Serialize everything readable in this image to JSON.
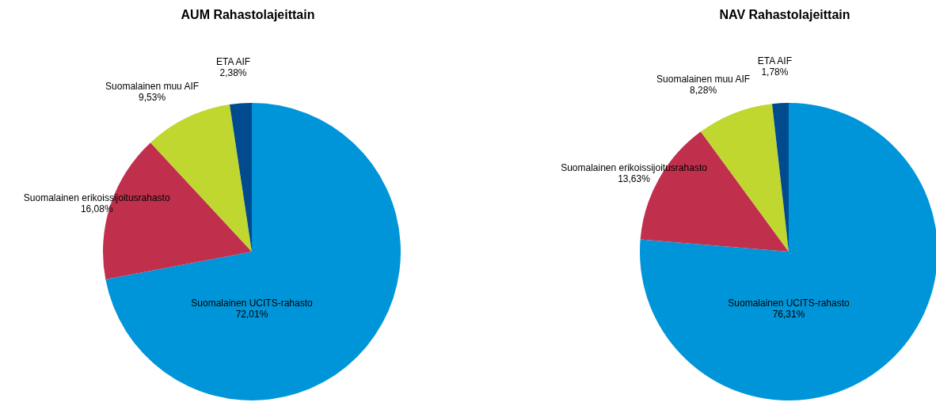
{
  "chart_data": [
    {
      "type": "pie",
      "title": "AUM Rahastolajeittain",
      "categories": [
        "Suomalainen UCITS-rahasto",
        "Suomalainen erikoissijoitusrahasto",
        "Suomalainen muu AIF",
        "ETA AIF"
      ],
      "values": [
        72.01,
        16.08,
        9.53,
        2.38
      ],
      "value_labels": [
        "72,01%",
        "16,08%",
        "9,53%",
        "2,38%"
      ],
      "colors": [
        "#0095d9",
        "#c0304d",
        "#c0d730",
        "#004b8d"
      ]
    },
    {
      "type": "pie",
      "title": "NAV Rahastolajeittain",
      "categories": [
        "Suomalainen UCITS-rahasto",
        "Suomalainen erikoissijoitusrahasto",
        "Suomalainen muu AIF",
        "ETA AIF"
      ],
      "values": [
        76.31,
        13.63,
        8.28,
        1.78
      ],
      "value_labels": [
        "76,31%",
        "13,63%",
        "8,28%",
        "1,78%"
      ],
      "colors": [
        "#0095d9",
        "#c0304d",
        "#c0d730",
        "#004b8d"
      ]
    }
  ]
}
